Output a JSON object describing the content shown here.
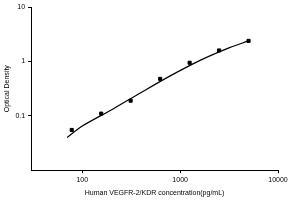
{
  "chart_data": {
    "type": "scatter",
    "x_label": "Human VEGFR-2/KDR concentration(pg/mL)",
    "y_label": "Optical Density",
    "log": true,
    "grid": false,
    "xlim": [
      30,
      10000
    ],
    "xticks": [
      100,
      1000,
      10000
    ],
    "ylim": [
      0.01,
      10
    ],
    "yticks": [
      0.1,
      1,
      10
    ],
    "series": [
      {
        "type": "scatter",
        "marker": "square",
        "color": "#000000",
        "x": [
          78,
          156,
          312,
          625,
          1250,
          2500,
          5000
        ],
        "values": [
          0.055,
          0.11,
          0.19,
          0.48,
          0.95,
          1.6,
          2.4
        ]
      },
      {
        "type": "line",
        "color": "#000000",
        "x": [
          70,
          100,
          200,
          400,
          800,
          1600,
          3200,
          5000
        ],
        "values": [
          0.04,
          0.065,
          0.13,
          0.27,
          0.55,
          1.05,
          1.8,
          2.4
        ]
      }
    ]
  }
}
